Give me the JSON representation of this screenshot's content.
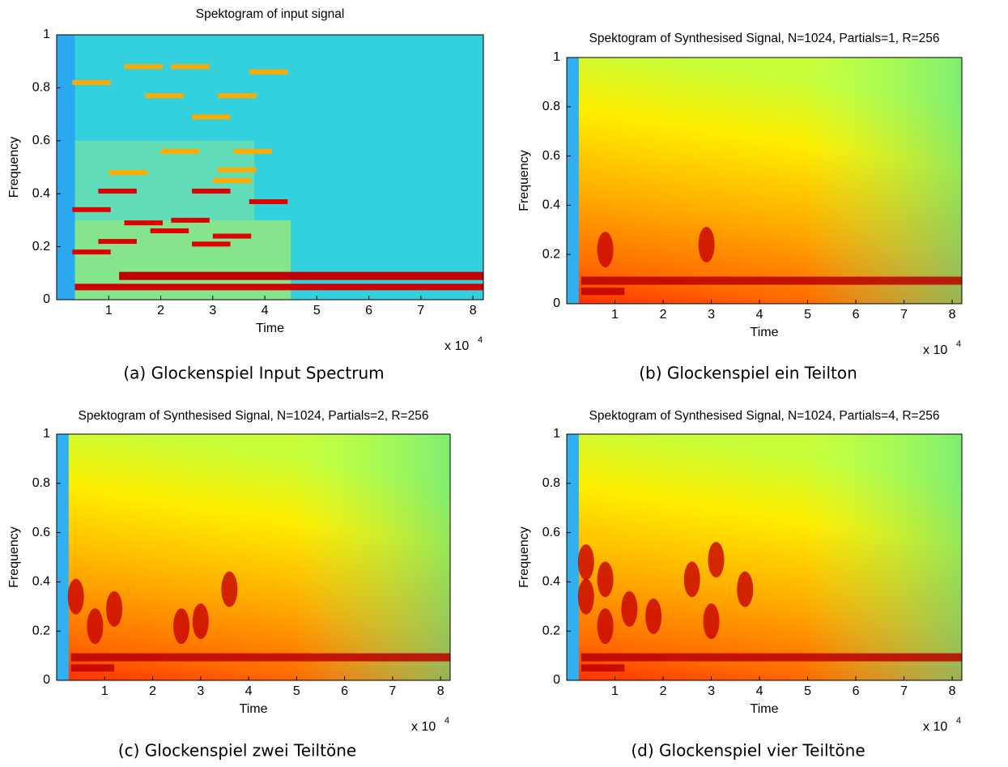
{
  "chart_data": [
    {
      "type": "heatmap",
      "title": "Spektogram of input signal",
      "xlabel": "Time",
      "ylabel": "Frequency",
      "xlim": [
        0,
        8.2
      ],
      "ylim": [
        0,
        1
      ],
      "xticks": [
        1,
        2,
        3,
        4,
        5,
        6,
        7,
        8
      ],
      "yticks": [
        0,
        0.2,
        0.4,
        0.6,
        0.8,
        1
      ],
      "x_scale_label": "x 10",
      "x_scale_exponent": "4",
      "caption": "(a) Glockenspiel Input Spectrum"
    },
    {
      "type": "heatmap",
      "title": "Spektogram of Synthesised Signal, N=1024, Partials=1, R=256",
      "xlabel": "Time",
      "ylabel": "Frequency",
      "xlim": [
        0,
        8.2
      ],
      "ylim": [
        0,
        1
      ],
      "xticks": [
        1,
        2,
        3,
        4,
        5,
        6,
        7,
        8
      ],
      "yticks": [
        0,
        0.2,
        0.4,
        0.6,
        0.8,
        1
      ],
      "x_scale_label": "x 10",
      "x_scale_exponent": "4",
      "caption": "(b) Glockenspiel ein Teilton"
    },
    {
      "type": "heatmap",
      "title": "Spektogram of Synthesised Signal, N=1024, Partials=2, R=256",
      "xlabel": "Time",
      "ylabel": "Frequency",
      "xlim": [
        0,
        8.2
      ],
      "ylim": [
        0,
        1
      ],
      "xticks": [
        1,
        2,
        3,
        4,
        5,
        6,
        7,
        8
      ],
      "yticks": [
        0,
        0.2,
        0.4,
        0.6,
        0.8,
        1
      ],
      "x_scale_label": "x 10",
      "x_scale_exponent": "4",
      "caption": "(c) Glockenspiel zwei Teiltöne"
    },
    {
      "type": "heatmap",
      "title": "Spektogram of Synthesised Signal, N=1024, Partials=4, R=256",
      "xlabel": "Time",
      "ylabel": "Frequency",
      "xlim": [
        0,
        8.2
      ],
      "ylim": [
        0,
        1
      ],
      "xticks": [
        1,
        2,
        3,
        4,
        5,
        6,
        7,
        8
      ],
      "yticks": [
        0,
        0.2,
        0.4,
        0.6,
        0.8,
        1
      ],
      "x_scale_label": "x 10",
      "x_scale_exponent": "4",
      "caption": "(d) Glockenspiel vier Teiltöne"
    }
  ]
}
